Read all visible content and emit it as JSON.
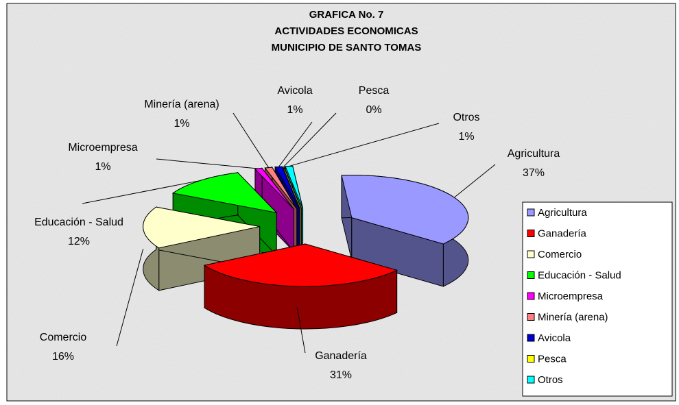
{
  "chart_data": {
    "type": "pie",
    "title": [
      "GRAFICA No. 7",
      "ACTIVIDADES ECONOMICAS",
      "MUNICIPIO DE SANTO TOMAS"
    ],
    "categories": [
      "Agricultura",
      "Ganadería",
      "Comercio",
      "Educación - Salud",
      "Microempresa",
      "Minería (arena)",
      "Avicola",
      "Pesca",
      "Otros"
    ],
    "values": [
      37,
      31,
      16,
      12,
      1,
      1,
      1,
      0,
      1
    ],
    "value_labels": [
      "37%",
      "31%",
      "16%",
      "12%",
      "1%",
      "1%",
      "1%",
      "0%",
      "1%"
    ],
    "colors": [
      "#9999ff",
      "#ff0000",
      "#ffffcc",
      "#00ff00",
      "#ff00ff",
      "#ff8080",
      "#0000cc",
      "#ffff00",
      "#00ffff"
    ],
    "legend": "right"
  }
}
